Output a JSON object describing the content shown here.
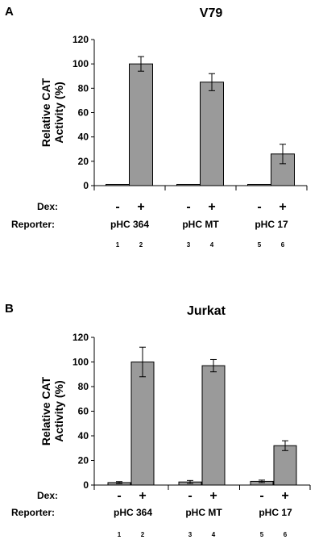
{
  "chart_data": [
    {
      "type": "bar",
      "panel_label": "A",
      "title": "V79",
      "ylabel": "Relative CAT Activity (%)",
      "ylim": [
        0,
        120
      ],
      "yticks": [
        "0",
        "20",
        "40",
        "60",
        "80",
        "100",
        "120"
      ],
      "dex_row_label": "Dex:",
      "reporter_row_label": "Reporter:",
      "groups": [
        {
          "reporter": "pHC 364",
          "bars": [
            {
              "dex": "-",
              "value": 1,
              "error": 0,
              "lane": "1"
            },
            {
              "dex": "+",
              "value": 100,
              "error": 6,
              "lane": "2"
            }
          ]
        },
        {
          "reporter": "pHC MT",
          "bars": [
            {
              "dex": "-",
              "value": 1,
              "error": 0,
              "lane": "3"
            },
            {
              "dex": "+",
              "value": 85,
              "error": 7,
              "lane": "4"
            }
          ]
        },
        {
          "reporter": "pHC 17",
          "bars": [
            {
              "dex": "-",
              "value": 1,
              "error": 0,
              "lane": "5"
            },
            {
              "dex": "+",
              "value": 26,
              "error": 8,
              "lane": "6"
            }
          ]
        }
      ],
      "grid": false,
      "bar_color": "#9a9a9a"
    },
    {
      "type": "bar",
      "panel_label": "B",
      "title": "Jurkat",
      "ylabel": "Relative CAT Activity (%)",
      "ylim": [
        0,
        120
      ],
      "yticks": [
        "0",
        "20",
        "40",
        "60",
        "80",
        "100",
        "120"
      ],
      "dex_row_label": "Dex:",
      "reporter_row_label": "Reporter:",
      "groups": [
        {
          "reporter": "pHC 364",
          "bars": [
            {
              "dex": "-",
              "value": 2,
              "error": 0.8,
              "lane": "1"
            },
            {
              "dex": "+",
              "value": 100,
              "error": 12,
              "lane": "2"
            }
          ]
        },
        {
          "reporter": "pHC MT",
          "bars": [
            {
              "dex": "-",
              "value": 2.5,
              "error": 1.2,
              "lane": "3"
            },
            {
              "dex": "+",
              "value": 97,
              "error": 5,
              "lane": "4"
            }
          ]
        },
        {
          "reporter": "pHC 17",
          "bars": [
            {
              "dex": "-",
              "value": 3,
              "error": 1,
              "lane": "5"
            },
            {
              "dex": "+",
              "value": 32,
              "error": 4,
              "lane": "6"
            }
          ]
        }
      ],
      "grid": false,
      "bar_color": "#9a9a9a"
    }
  ]
}
